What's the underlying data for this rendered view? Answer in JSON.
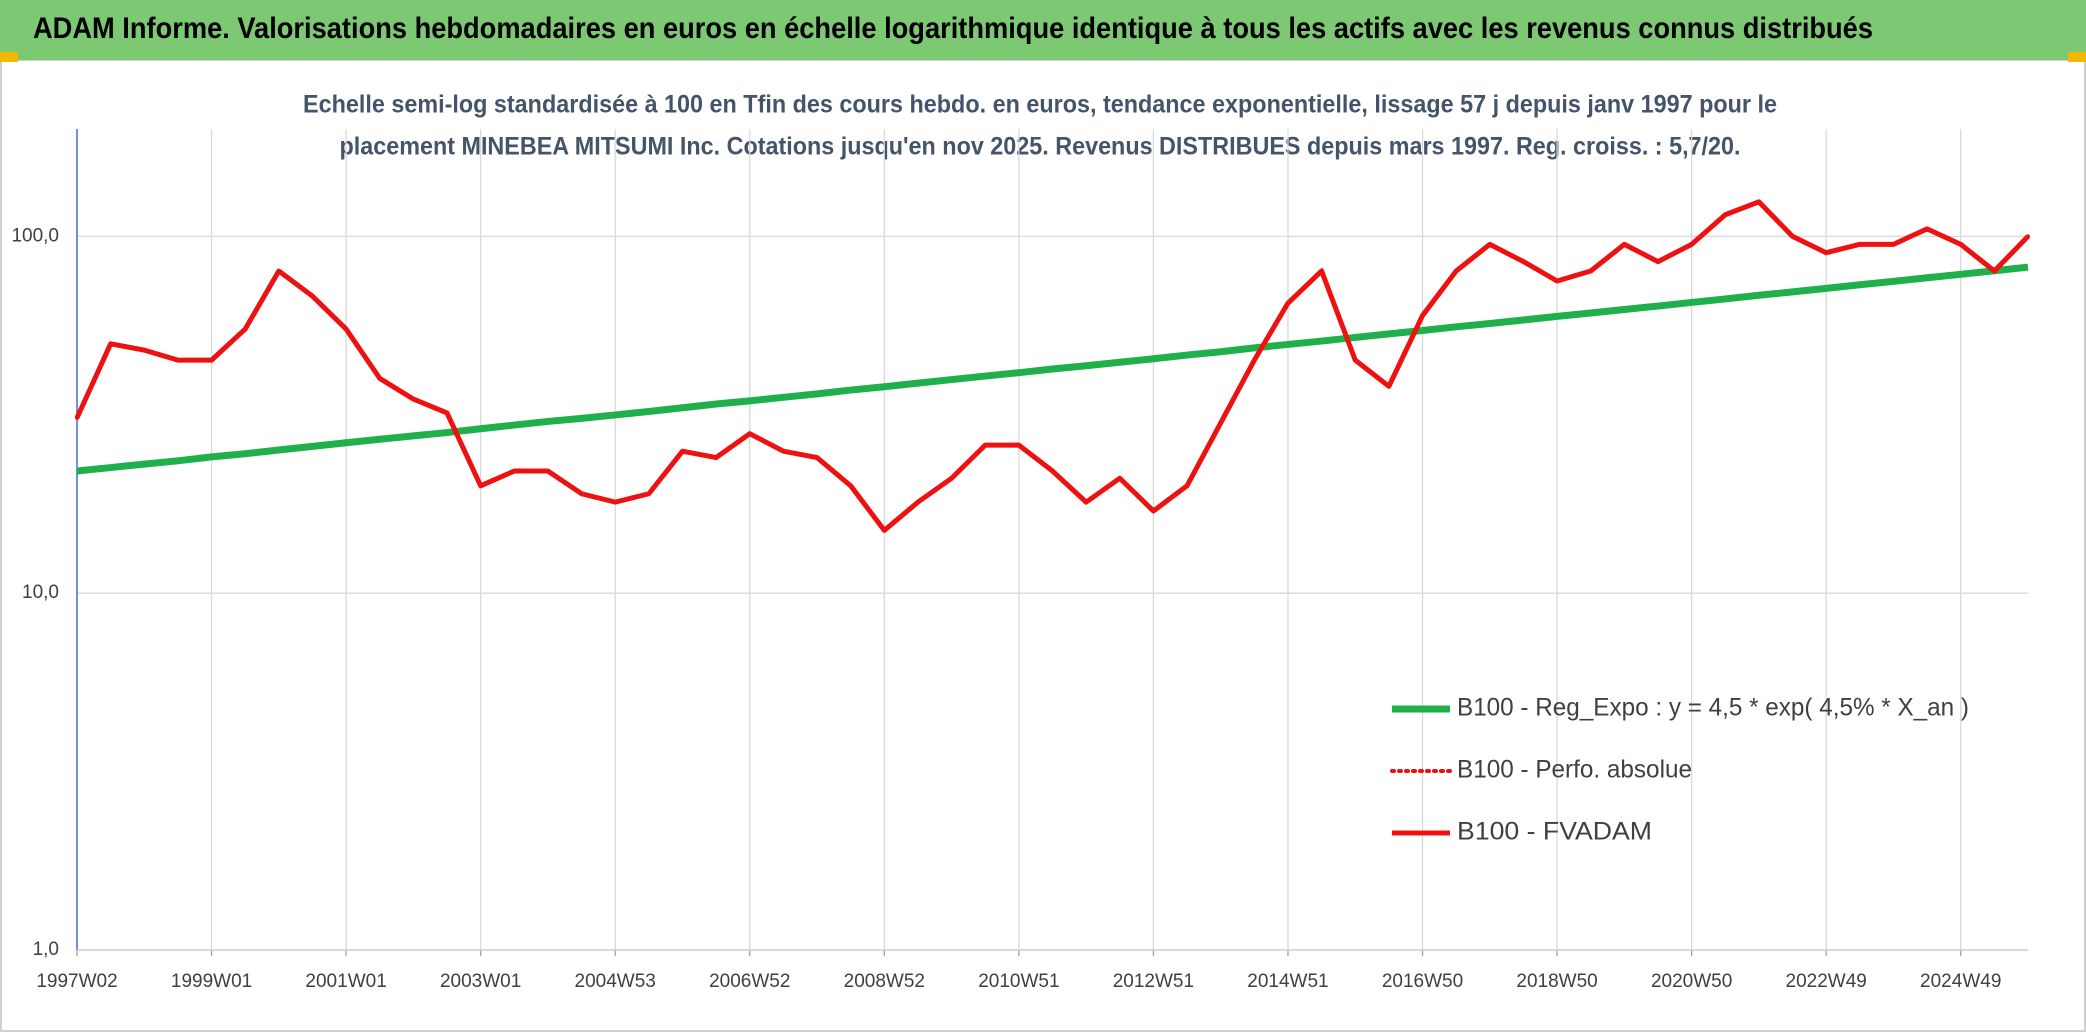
{
  "chart_data": {
    "type": "line",
    "title": "ADAM Informe. Valorisations hebdomadaires en euros en échelle logarithmique identique à tous les actifs avec les revenus connus distribués",
    "subtitle": [
      "Echelle semi-log standardisée à 100 en Tfin des cours hebdo. en euros, tendance exponentielle, lissage 57 j depuis janv 1997 pour le",
      "placement MINEBEA MITSUMI Inc. Cotations jusqu'en nov 2025. Revenus DISTRIBUES depuis mars 1997. Reg. croiss. : 5,7/20."
    ],
    "categories": [
      "1997W02",
      null,
      null,
      null,
      "1999W01",
      null,
      null,
      null,
      "2001W01",
      null,
      null,
      null,
      "2003W01",
      null,
      null,
      null,
      "2004W53",
      null,
      null,
      null,
      "2006W52",
      null,
      null,
      null,
      "2008W52",
      null,
      null,
      null,
      "2010W51",
      null,
      null,
      null,
      "2012W51",
      null,
      null,
      null,
      "2014W51",
      null,
      null,
      null,
      "2016W50",
      null,
      null,
      null,
      "2018W50",
      null,
      null,
      null,
      "2020W50",
      null,
      null,
      null,
      "2022W49",
      null,
      null,
      null,
      "2024W49",
      null,
      null
    ],
    "series": [
      {
        "name": "B100 - Reg_Expo : y = 4,5 * exp( 4,5% *  X_an )",
        "color": "#1fb04b",
        "style": "solid",
        "values": [
          22.0,
          22.5,
          23.0,
          23.5,
          24.1,
          24.6,
          25.2,
          25.8,
          26.4,
          27.0,
          27.6,
          28.2,
          28.9,
          29.6,
          30.3,
          30.9,
          31.6,
          32.3,
          33.1,
          33.9,
          34.6,
          35.4,
          36.2,
          37.1,
          37.9,
          38.8,
          39.7,
          40.6,
          41.5,
          42.5,
          43.4,
          44.4,
          45.4,
          46.5,
          47.5,
          48.7,
          49.8,
          50.9,
          52.1,
          53.3,
          54.5,
          55.8,
          57.0,
          58.3,
          59.7,
          61.0,
          62.4,
          63.8,
          65.3,
          66.8,
          68.4,
          69.9,
          71.5,
          73.2,
          74.8,
          76.6,
          78.3,
          80.1,
          82.0
        ]
      },
      {
        "name": "B100 - Perfo. absolue",
        "color": "#ee1111",
        "style": "dotted",
        "values": [
          31,
          50,
          48,
          45,
          45,
          55,
          80,
          68,
          55,
          40,
          35,
          32,
          20,
          22,
          22,
          19,
          18,
          19,
          25,
          24,
          28,
          25,
          24,
          20,
          15,
          18,
          21,
          26,
          26,
          22,
          18,
          21,
          17,
          20,
          30,
          45,
          65,
          80,
          45,
          38,
          60,
          80,
          95,
          85,
          75,
          80,
          95,
          85,
          95,
          115,
          125,
          100,
          90,
          95,
          95,
          105,
          95,
          80,
          100
        ]
      },
      {
        "name": "B100 - FVADAM",
        "color": "#ee1111",
        "style": "solid",
        "values": [
          31,
          50,
          48,
          45,
          45,
          55,
          80,
          68,
          55,
          40,
          35,
          32,
          20,
          22,
          22,
          19,
          18,
          19,
          25,
          24,
          28,
          25,
          24,
          20,
          15,
          18,
          21,
          26,
          26,
          22,
          18,
          21,
          17,
          20,
          30,
          45,
          65,
          80,
          45,
          38,
          60,
          80,
          95,
          85,
          75,
          80,
          95,
          85,
          95,
          115,
          125,
          100,
          90,
          95,
          95,
          105,
          95,
          80,
          100
        ]
      }
    ],
    "ylim": [
      1,
      200
    ],
    "yscale": "log",
    "yticks": [
      {
        "value": 1,
        "label": "1,0"
      },
      {
        "value": 10,
        "label": "10,0"
      },
      {
        "value": 100,
        "label": "100,0"
      }
    ],
    "grid": true,
    "legend": "right"
  }
}
